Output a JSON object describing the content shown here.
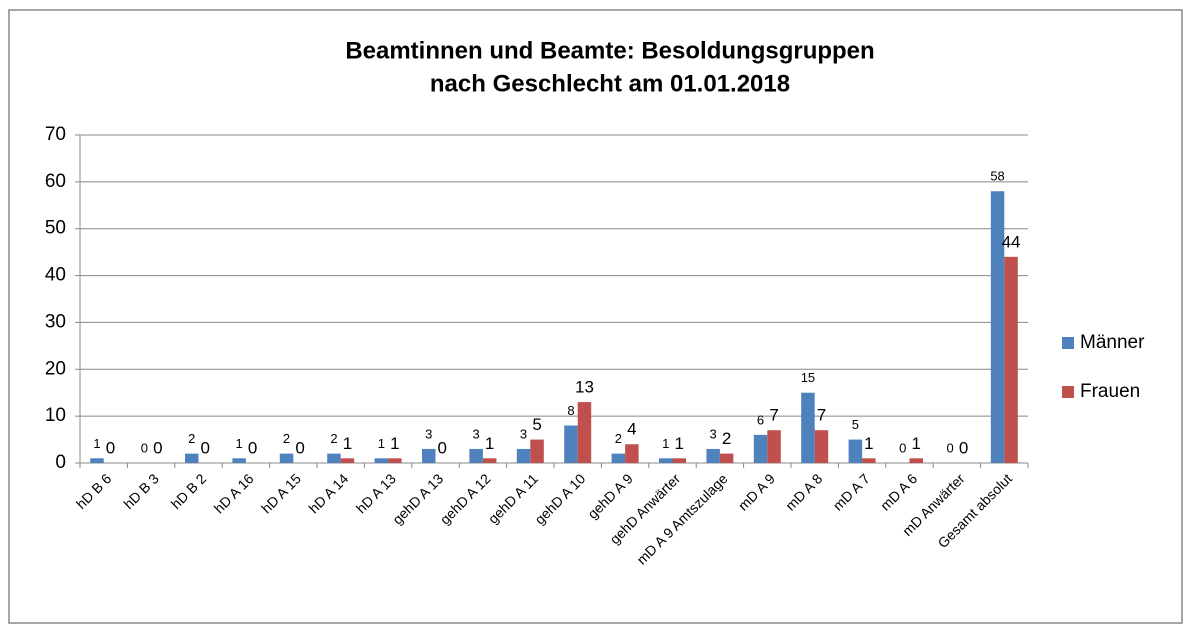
{
  "chart_data": {
    "type": "bar",
    "title": [
      "Beamtinnen und Beamte: Besoldungsgruppen",
      "nach Geschlecht am 01.01.2018"
    ],
    "categories": [
      "hD B 6",
      "hD B 3",
      "hD B 2",
      "hD A 16",
      "hD A 15",
      "hD A 14",
      "hD A 13",
      "gehD A 13",
      "gehD A 12",
      "gehD A 11",
      "gehD A 10",
      "gehD A 9",
      "gehD Anwärter",
      "mD A 9 Amtszulage",
      "mD A 9",
      "mD A 8",
      "mD A 7",
      "mD A 6",
      "mD Anwärter",
      "Gesamt absolut"
    ],
    "series": [
      {
        "name": "Männer",
        "color": "#4f81bd",
        "values": [
          1,
          0,
          2,
          1,
          2,
          2,
          1,
          3,
          3,
          3,
          8,
          2,
          1,
          3,
          6,
          15,
          5,
          0,
          0,
          58
        ]
      },
      {
        "name": "Frauen",
        "color": "#c0504d",
        "values": [
          0,
          0,
          0,
          0,
          0,
          1,
          1,
          0,
          1,
          5,
          13,
          4,
          1,
          2,
          7,
          7,
          1,
          1,
          0,
          44
        ]
      }
    ],
    "ylim": [
      0,
      70
    ],
    "yticks": [
      0,
      10,
      20,
      30,
      40,
      50,
      60,
      70
    ],
    "grid": true,
    "legend": "right"
  }
}
